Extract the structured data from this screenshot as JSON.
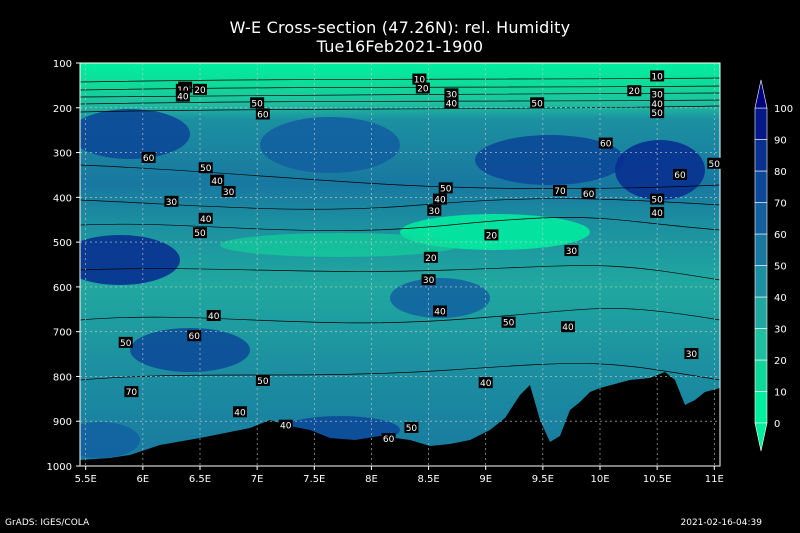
{
  "chart_data": {
    "type": "heatmap",
    "title": "W-E Cross-section (47.26N): rel. Humidity",
    "subtitle": "Tue16Feb2021-1900",
    "x_ticks": [
      "5.5E",
      "6E",
      "6.5E",
      "7E",
      "7.5E",
      "8E",
      "8.5E",
      "9E",
      "9.5E",
      "10E",
      "10.5E",
      "11E"
    ],
    "x_range": [
      5.45,
      11.05
    ],
    "y_ticks": [
      100,
      200,
      300,
      400,
      500,
      600,
      700,
      800,
      900,
      1000
    ],
    "y_range_hpa": [
      100,
      1000
    ],
    "colorbar": {
      "levels": [
        0,
        10,
        20,
        30,
        40,
        50,
        60,
        70,
        80,
        90,
        100
      ],
      "colors": [
        "#00f0a0",
        "#10d898",
        "#1ec0a0",
        "#20a8a0",
        "#1c90a0",
        "#1878a0",
        "#1260a0",
        "#0c4898",
        "#083090",
        "#041888",
        "#000080"
      ]
    },
    "grid": "dotted",
    "contour_labels": [
      {
        "v": "10",
        "x": 6.37,
        "y": 155
      },
      {
        "v": "10",
        "x": 6.35,
        "y": 160
      },
      {
        "v": "20",
        "x": 6.5,
        "y": 160
      },
      {
        "v": "40",
        "x": 6.35,
        "y": 175
      },
      {
        "v": "10",
        "x": 8.42,
        "y": 137
      },
      {
        "v": "20",
        "x": 8.45,
        "y": 157
      },
      {
        "v": "30",
        "x": 8.7,
        "y": 170
      },
      {
        "v": "40",
        "x": 8.7,
        "y": 190
      },
      {
        "v": "50",
        "x": 7.0,
        "y": 190
      },
      {
        "v": "60",
        "x": 7.05,
        "y": 215
      },
      {
        "v": "50",
        "x": 9.45,
        "y": 190
      },
      {
        "v": "60",
        "x": 10.05,
        "y": 280
      },
      {
        "v": "10",
        "x": 10.5,
        "y": 130
      },
      {
        "v": "20",
        "x": 10.3,
        "y": 163
      },
      {
        "v": "30",
        "x": 10.5,
        "y": 170
      },
      {
        "v": "40",
        "x": 10.5,
        "y": 192
      },
      {
        "v": "50",
        "x": 10.5,
        "y": 212
      },
      {
        "v": "60",
        "x": 6.05,
        "y": 312
      },
      {
        "v": "50",
        "x": 6.55,
        "y": 335
      },
      {
        "v": "40",
        "x": 6.65,
        "y": 363
      },
      {
        "v": "30",
        "x": 6.75,
        "y": 388
      },
      {
        "v": "30",
        "x": 6.25,
        "y": 410
      },
      {
        "v": "40",
        "x": 6.55,
        "y": 448
      },
      {
        "v": "50",
        "x": 6.5,
        "y": 480
      },
      {
        "v": "60",
        "x": 10.7,
        "y": 350
      },
      {
        "v": "50",
        "x": 11.0,
        "y": 325
      },
      {
        "v": "70",
        "x": 9.65,
        "y": 386
      },
      {
        "v": "60",
        "x": 9.9,
        "y": 392
      },
      {
        "v": "50",
        "x": 8.65,
        "y": 380
      },
      {
        "v": "40",
        "x": 8.6,
        "y": 405
      },
      {
        "v": "30",
        "x": 8.55,
        "y": 430
      },
      {
        "v": "50",
        "x": 10.5,
        "y": 405
      },
      {
        "v": "40",
        "x": 10.5,
        "y": 435
      },
      {
        "v": "20",
        "x": 9.05,
        "y": 485
      },
      {
        "v": "20",
        "x": 8.52,
        "y": 535
      },
      {
        "v": "30",
        "x": 9.75,
        "y": 520
      },
      {
        "v": "30",
        "x": 8.5,
        "y": 585
      },
      {
        "v": "40",
        "x": 6.62,
        "y": 665
      },
      {
        "v": "40",
        "x": 8.6,
        "y": 655
      },
      {
        "v": "50",
        "x": 9.2,
        "y": 680
      },
      {
        "v": "40",
        "x": 9.72,
        "y": 690
      },
      {
        "v": "50",
        "x": 5.85,
        "y": 725
      },
      {
        "v": "60",
        "x": 6.45,
        "y": 710
      },
      {
        "v": "30",
        "x": 10.8,
        "y": 750
      },
      {
        "v": "70",
        "x": 5.9,
        "y": 835
      },
      {
        "v": "50",
        "x": 7.05,
        "y": 810
      },
      {
        "v": "40",
        "x": 9.0,
        "y": 815
      },
      {
        "v": "40",
        "x": 6.85,
        "y": 880
      },
      {
        "v": "40",
        "x": 7.25,
        "y": 910
      },
      {
        "v": "50",
        "x": 8.35,
        "y": 915
      },
      {
        "v": "60",
        "x": 8.15,
        "y": 940
      }
    ]
  },
  "footer": {
    "left": "GrADS: IGES/COLA",
    "right": "2021-02-16-04:39"
  }
}
